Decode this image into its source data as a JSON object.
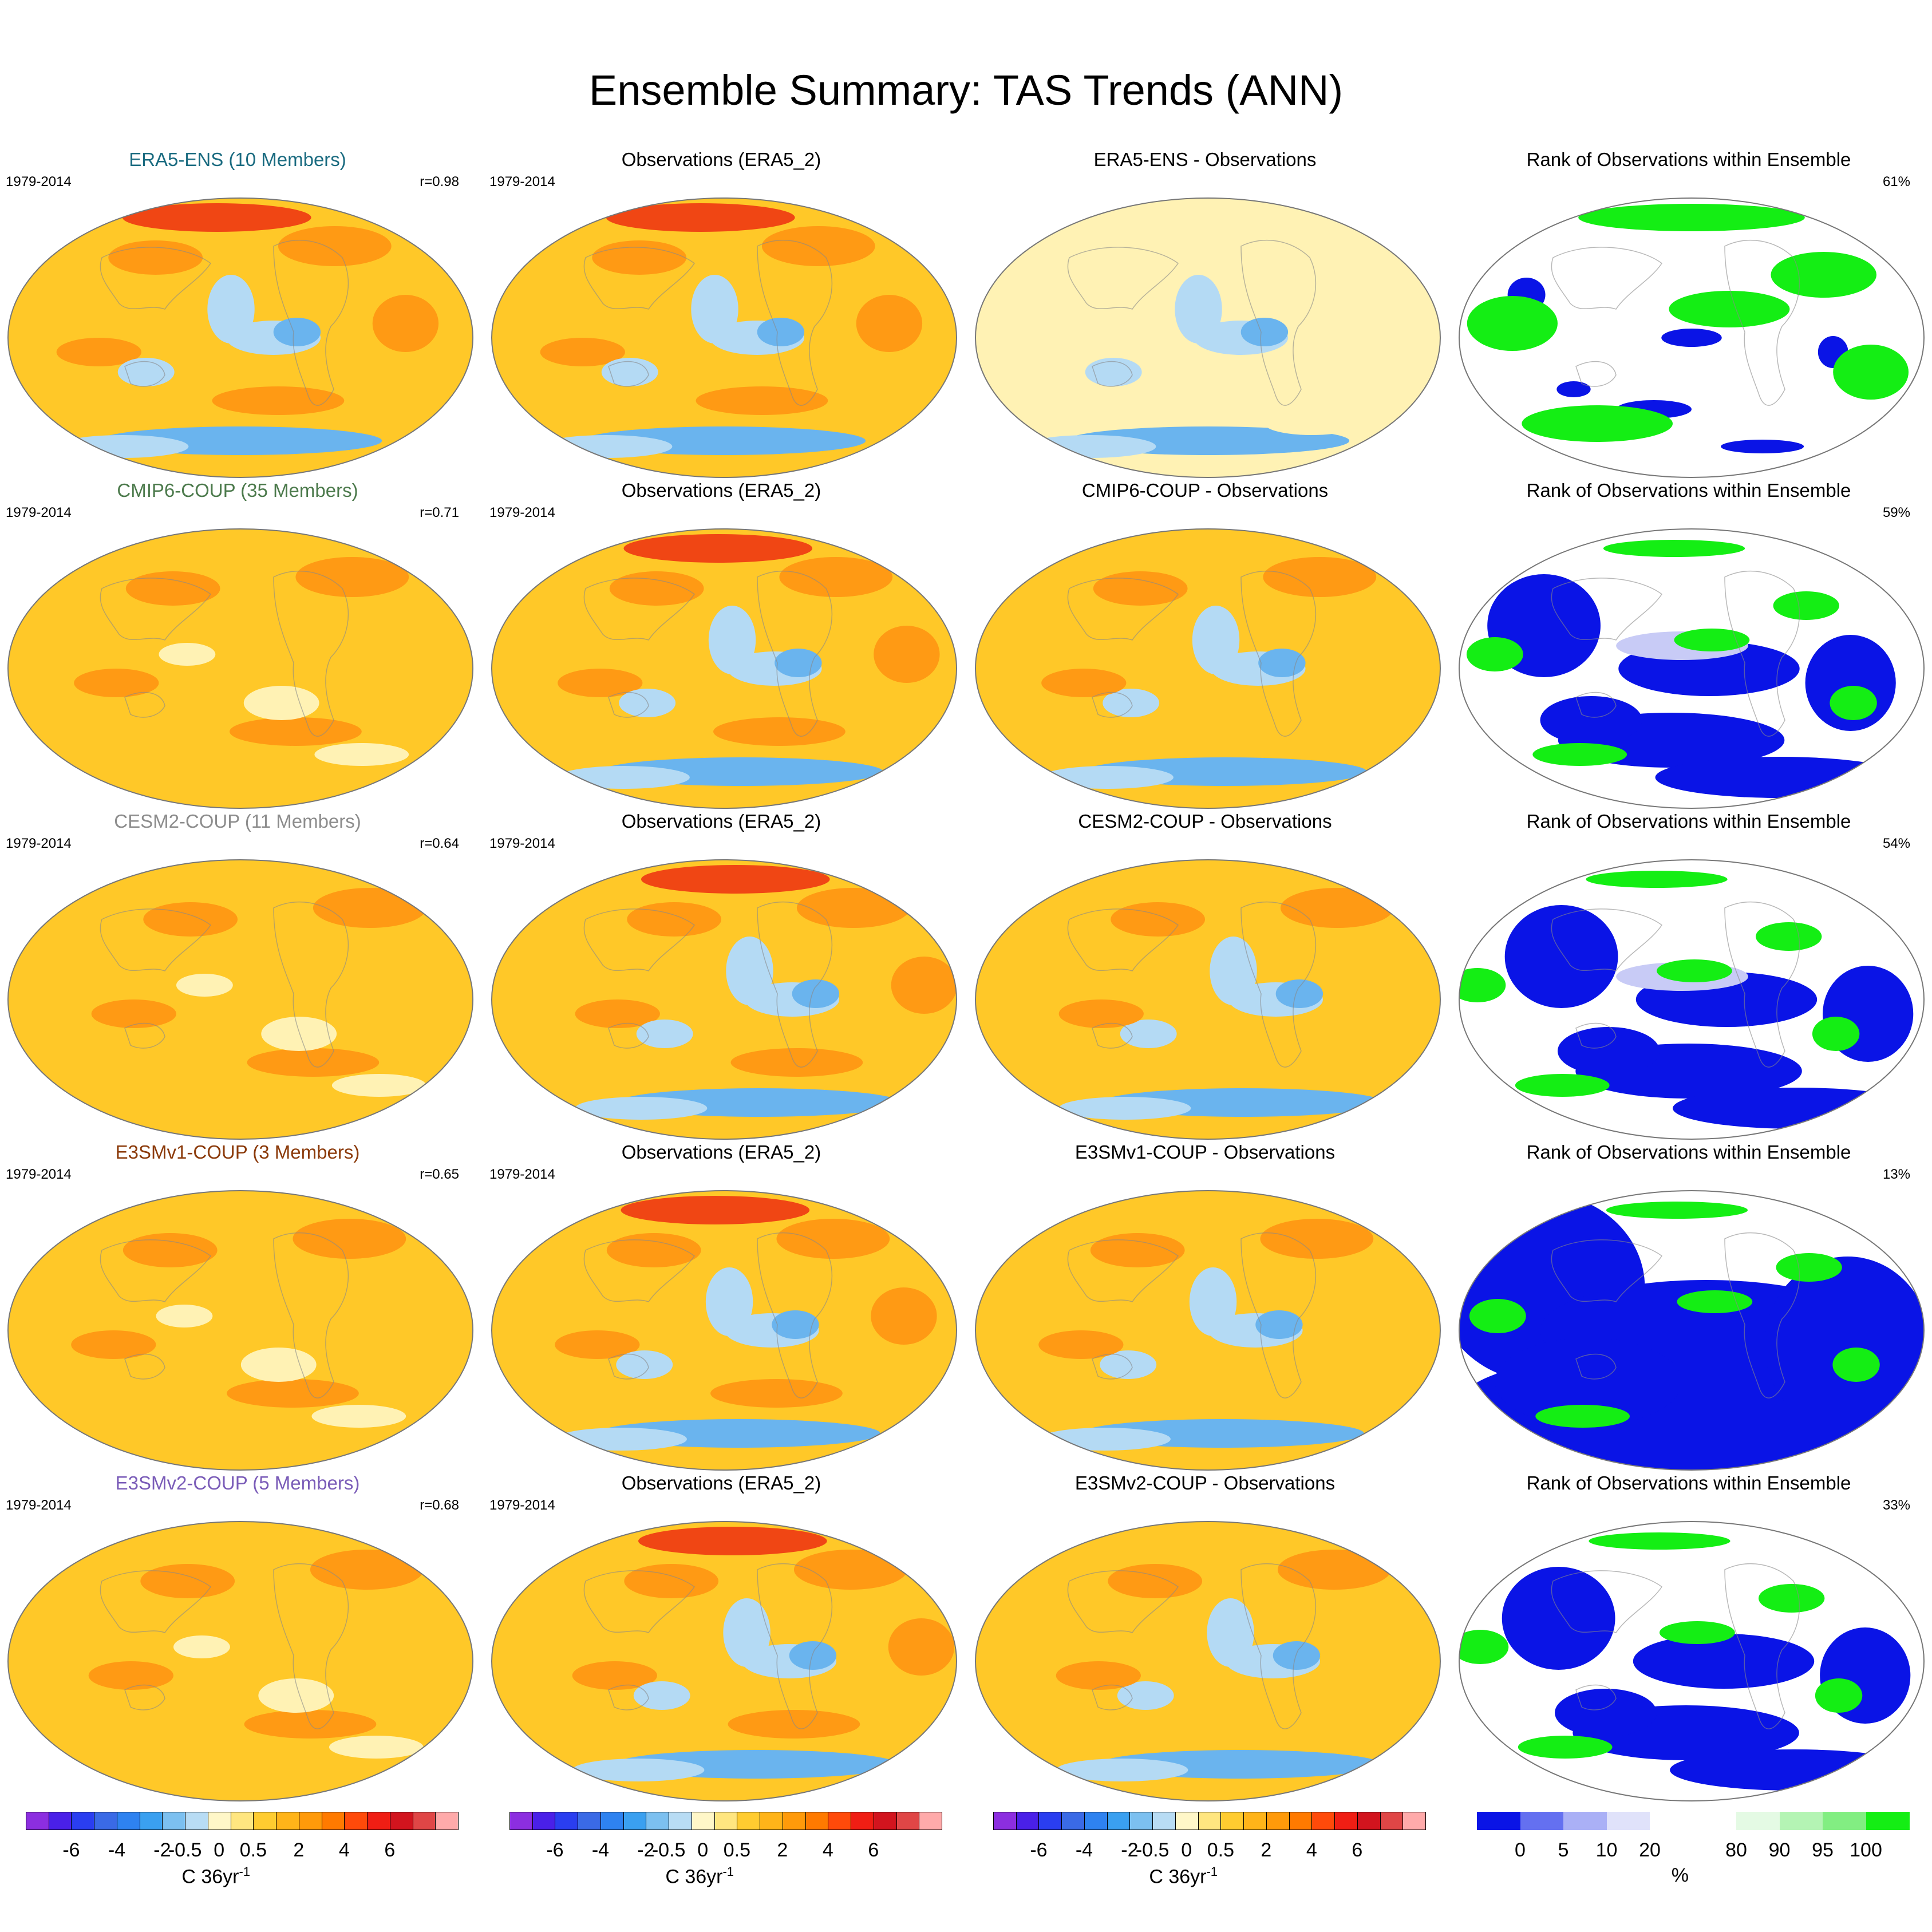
{
  "title": "Ensemble Summary: TAS Trends (ANN)",
  "rows": [
    {
      "ensemble_label": "ERA5-ENS (10 Members)",
      "ensemble_color": "#1a6b80",
      "period": "1979-2014",
      "correlation": "r=0.98",
      "obs_label": "Observations (ERA5_2)",
      "diff_label": "ERA5-ENS - Observations",
      "rank_label": "Rank of Observations within Ensemble",
      "rank_pct": "61%"
    },
    {
      "ensemble_label": "CMIP6-COUP (35 Members)",
      "ensemble_color": "#4c7a4c",
      "period": "1979-2014",
      "correlation": "r=0.71",
      "obs_label": "Observations (ERA5_2)",
      "diff_label": "CMIP6-COUP - Observations",
      "rank_label": "Rank of Observations within Ensemble",
      "rank_pct": "59%"
    },
    {
      "ensemble_label": "CESM2-COUP (11 Members)",
      "ensemble_color": "#8c8c8c",
      "period": "1979-2014",
      "correlation": "r=0.64",
      "obs_label": "Observations (ERA5_2)",
      "diff_label": "CESM2-COUP - Observations",
      "rank_label": "Rank of Observations within Ensemble",
      "rank_pct": "54%"
    },
    {
      "ensemble_label": "E3SMv1-COUP (3 Members)",
      "ensemble_color": "#8b3a0a",
      "period": "1979-2014",
      "correlation": "r=0.65",
      "obs_label": "Observations (ERA5_2)",
      "diff_label": "E3SMv1-COUP - Observations",
      "rank_label": "Rank of Observations within Ensemble",
      "rank_pct": "13%"
    },
    {
      "ensemble_label": "E3SMv2-COUP (5 Members)",
      "ensemble_color": "#7a5cb8",
      "period": "1979-2014",
      "correlation": "r=0.68",
      "obs_label": "Observations (ERA5_2)",
      "diff_label": "E3SMv2-COUP - Observations",
      "rank_label": "Rank of Observations within Ensemble",
      "rank_pct": "33%"
    }
  ],
  "colorbars": {
    "trend": {
      "colors": [
        "#8c2ee0",
        "#4a20e8",
        "#2a3ef0",
        "#3a6ae6",
        "#2e82f0",
        "#3aa0f0",
        "#7cc0f0",
        "#b8dcf4",
        "#fff7c8",
        "#ffe680",
        "#ffcc30",
        "#ffb419",
        "#ff9a0a",
        "#ff7a00",
        "#ff4a0a",
        "#f01e14",
        "#d2141e",
        "#e04646",
        "#ffaaaa"
      ],
      "ticks": [
        "-6",
        "-4",
        "-2",
        "-0.5",
        "0",
        "0.5",
        "2",
        "4",
        "6"
      ],
      "unit": "C 36yr",
      "unit_sup": "-1"
    },
    "rank": {
      "colors": [
        "#0a14e6",
        "#6470f0",
        "#aab0f6",
        "#e0e2fa",
        "#ffffff",
        "#ffffff",
        "#e4fae4",
        "#b4f4b4",
        "#82ee82",
        "#14ee14"
      ],
      "ticks": [
        "0",
        "5",
        "10",
        "20",
        "80",
        "90",
        "95",
        "100"
      ],
      "unit": "%"
    }
  },
  "palette": {
    "ocean_warm": "#ffc828",
    "warm_strong": "#ff9a14",
    "warm_hot": "#f04614",
    "cool_light": "#b4daf4",
    "cool": "#6ab4ee",
    "pale_yellow": "#fff2b4",
    "rank_blue": "#0a14e6",
    "rank_green": "#14ee14",
    "rank_lavender": "#c8cbf6"
  }
}
